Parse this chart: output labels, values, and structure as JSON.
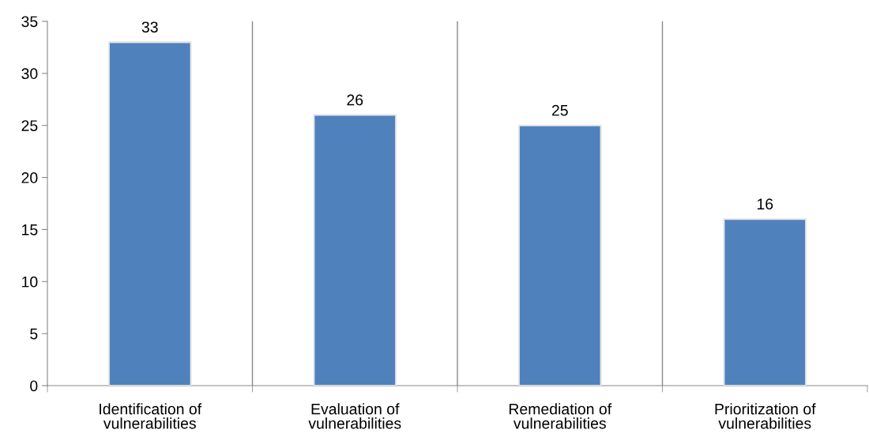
{
  "chart_data": {
    "type": "bar",
    "categories": [
      "Identification of\nvulnerabilities",
      "Evaluation of\nvulnerabilities",
      "Remediation of\nvulnerabilities",
      "Prioritization of\nvulnerabilities"
    ],
    "values": [
      33,
      26,
      25,
      16
    ],
    "color": "#4f81bd",
    "ylim": [
      0,
      35
    ],
    "yticks": [
      0,
      5,
      10,
      15,
      20,
      25,
      30,
      35
    ],
    "grid": "x",
    "data_labels": true
  }
}
